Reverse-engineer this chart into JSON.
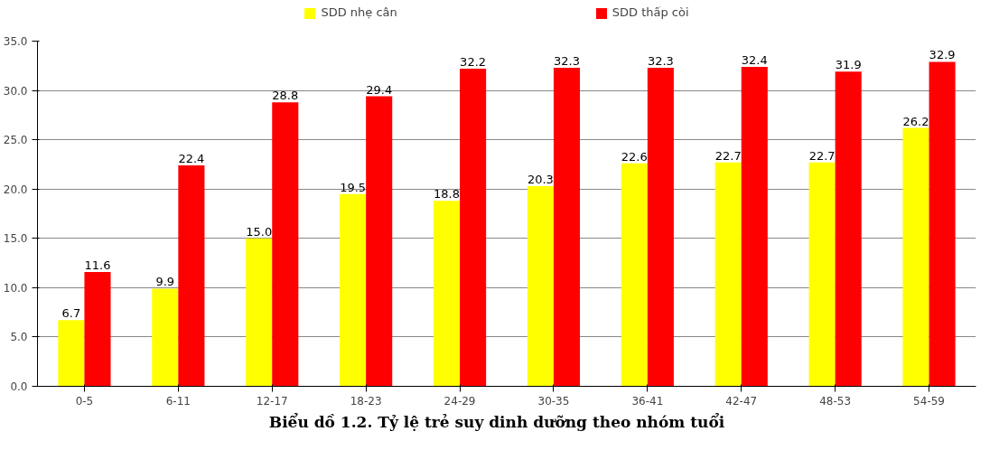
{
  "chart_data": {
    "type": "bar",
    "title": "Biểu dồ 1.2. Tỷ lệ trẻ suy dinh dưỡng theo nhóm tuổi",
    "categories": [
      "0-5",
      "6-11",
      "12-17",
      "18-23",
      "24-29",
      "30-35",
      "36-41",
      "42-47",
      "48-53",
      "54-59"
    ],
    "series": [
      {
        "name": "SDD nhẹ cân",
        "color": "#ffff00",
        "values": [
          6.7,
          9.9,
          15.0,
          19.5,
          18.8,
          20.3,
          22.6,
          22.7,
          22.7,
          26.2
        ],
        "value_labels": [
          "6.7",
          "9.9",
          "15.0",
          "19.5",
          "18.8",
          "20.3",
          "22.6",
          "22.7",
          "22.7",
          "26.2"
        ]
      },
      {
        "name": "SDD thấp còi",
        "color": "#ff0000",
        "values": [
          11.6,
          22.4,
          28.8,
          29.4,
          32.2,
          32.3,
          32.3,
          32.4,
          31.9,
          32.9
        ],
        "value_labels": [
          "11.6",
          "22.4",
          "28.8",
          "29.4",
          "32.2",
          "32.3",
          "32.3",
          "32.4",
          "31.9",
          "32.9"
        ]
      }
    ],
    "ylim": [
      0,
      35
    ],
    "yticks": [
      {
        "value": 0,
        "label": "0.0"
      },
      {
        "value": 5,
        "label": "5.0"
      },
      {
        "value": 10,
        "label": "10.0"
      },
      {
        "value": 15,
        "label": "15.0"
      },
      {
        "value": 20,
        "label": "20.0"
      },
      {
        "value": 25,
        "label": "25.0"
      },
      {
        "value": 30,
        "label": "30.0"
      },
      {
        "value": 35,
        "label": "35.0"
      }
    ],
    "grid": "y",
    "legend": "top"
  }
}
